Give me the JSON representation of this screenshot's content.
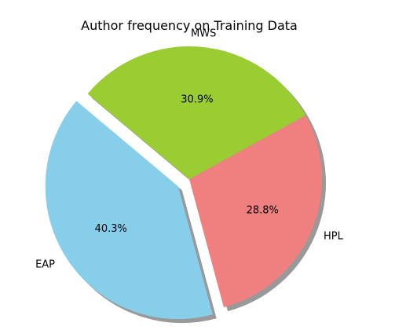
{
  "chart_data": {
    "type": "pie",
    "title": "Author frequency on Training Data",
    "slices": [
      {
        "label": "EAP",
        "value": 40.3,
        "pct_label": "40.3%",
        "color": "#87ceeb",
        "exploded": true
      },
      {
        "label": "HPL",
        "value": 28.8,
        "pct_label": "28.8%",
        "color": "#f08080",
        "exploded": false
      },
      {
        "label": "MWS",
        "value": 30.9,
        "pct_label": "30.9%",
        "color": "#9acd32",
        "exploded": false
      }
    ],
    "start_angle_deg": 140,
    "direction": "counterclockwise",
    "shadow": true,
    "legend": "none"
  }
}
